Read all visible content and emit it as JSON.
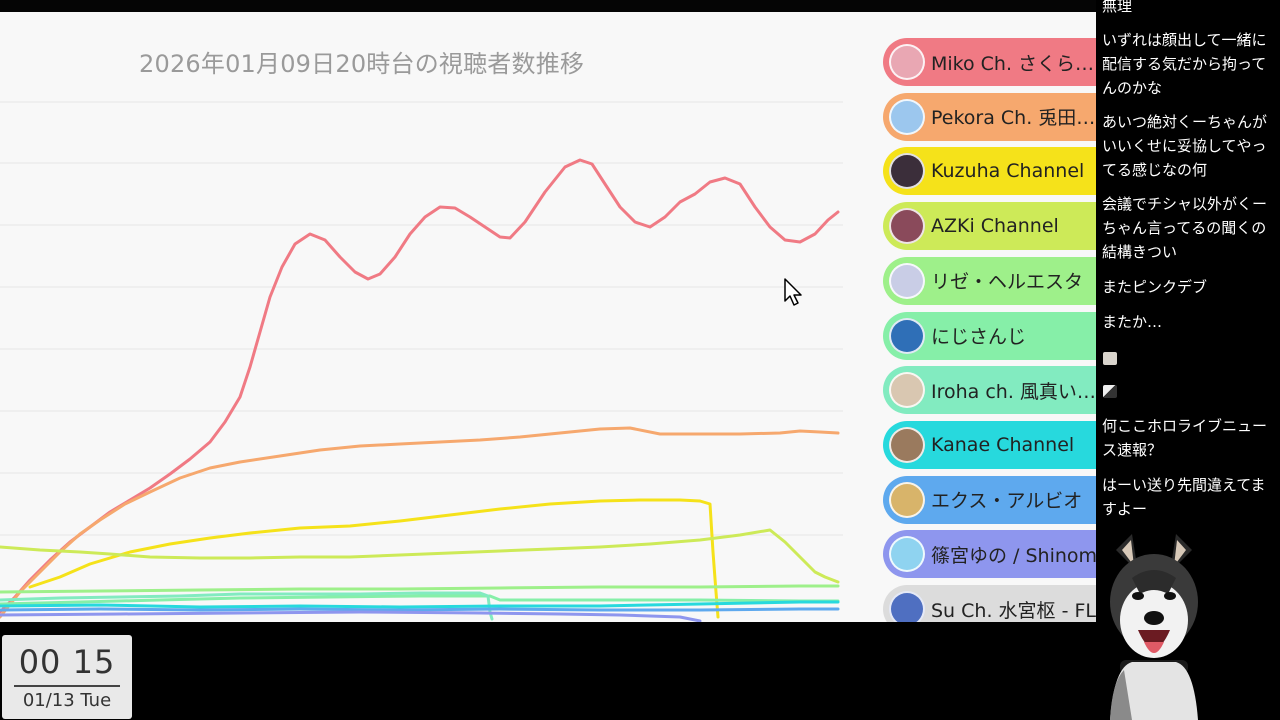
{
  "chart": {
    "title": "2026年01月09日20時台の視聴者数推移",
    "legend": [
      {
        "label": "Miko Ch. さくら…",
        "color": "#f07a84",
        "avatar": "#e9a7b3"
      },
      {
        "label": "Pekora Ch. 兎田…",
        "color": "#f6a86e",
        "avatar": "#9cc7ee"
      },
      {
        "label": "Kuzuha Channel",
        "color": "#f5e21a",
        "avatar": "#3b2e3a"
      },
      {
        "label": "AZKi Channel",
        "color": "#cdea58",
        "avatar": "#8a4a5b"
      },
      {
        "label": "リゼ・ヘルエスタ",
        "color": "#9ef08a",
        "avatar": "#c9cde6"
      },
      {
        "label": "にじさんじ",
        "color": "#86efa8",
        "avatar": "#2f6fb7"
      },
      {
        "label": "Iroha ch. 風真い…",
        "color": "#82ebc0",
        "avatar": "#d9c7b1"
      },
      {
        "label": "Kanae Channel",
        "color": "#27d9dd",
        "avatar": "#9a7a5e"
      },
      {
        "label": "エクス・アルビオ",
        "color": "#5ea9ee",
        "avatar": "#d8b46a"
      },
      {
        "label": "篠宮ゆの / Shinom",
        "color": "#8e96ee",
        "avatar": "#8fd3f0"
      },
      {
        "label": "Su Ch. 水宮枢 - FL",
        "color": "#dcdcdc",
        "avatar": "#4f6fc1"
      }
    ]
  },
  "chat": {
    "messages": [
      {
        "text": "無理"
      },
      {
        "text": "いずれは顔出して一緒に配信する気だから拘ってんのかな"
      },
      {
        "text": "あいつ絶対くーちゃんがいいくせに妥協してやってる感じなの何"
      },
      {
        "text": "会議でチシャ以外がくーちゃん言ってるの聞くの結構きつい"
      },
      {
        "text": "またピンクデブ"
      },
      {
        "text": "またか…"
      },
      {
        "text": "何ここホロライブニュース速報？"
      },
      {
        "text": "はーい送り先間違えてますよー"
      }
    ]
  },
  "clock": {
    "time": "00 15",
    "date": "01/13 Tue"
  },
  "icons": {
    "cursor": "mouse-pointer-icon",
    "stamp1": "cat-stamp-icon",
    "stamp2": "person-stamp-icon",
    "streamer": "husky-dog-avatar"
  }
}
